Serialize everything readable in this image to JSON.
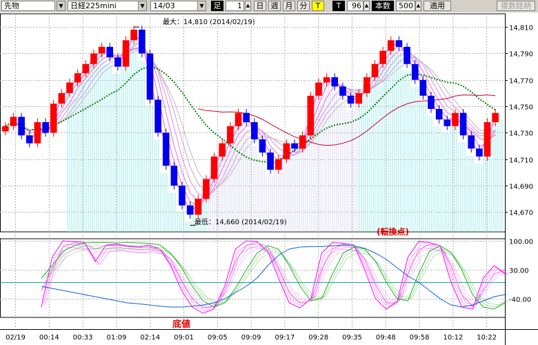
{
  "toolbar": {
    "market": "先物",
    "product": "日経225mini",
    "contract": "14/03",
    "bar_label": "足",
    "bar_count": "1",
    "period_day": "日",
    "period_week": "週",
    "period_month": "月",
    "period_minute": "分",
    "t_yellow": "T",
    "t_dark": "T",
    "tick_value": "96",
    "count_mode": "本数",
    "count_value": "500",
    "apply": "適用",
    "multi_issue": "複数銘柄"
  },
  "chart_data": [
    {
      "type": "candlestick",
      "title": "",
      "ylim": [
        14655,
        14820
      ],
      "y_ticks": [
        "14,810",
        "14,790",
        "14,770",
        "14,750",
        "14,730",
        "14,710",
        "14,690",
        "14,670"
      ],
      "high_annotation": "最大：14,810 (2014/02/19)",
      "low_annotation": "最低：14,660 (2014/02/19)",
      "high_value": 14810,
      "low_value": 14660,
      "series": [
        {
          "name": "",
          "values": [
            14735,
            14742,
            14728,
            14722,
            14738,
            14730,
            14752,
            14760,
            14768,
            14775,
            14782,
            14790,
            14795,
            14787,
            14780,
            14800,
            14808,
            14790,
            14755,
            14730,
            14705,
            14690,
            14675,
            14668,
            14680,
            14695,
            14712,
            14722,
            14735,
            14745,
            14738,
            14725,
            14715,
            14702,
            14710,
            14722,
            14718,
            14728,
            14758,
            14768,
            14772,
            14765,
            14758,
            14752,
            14760,
            14772,
            14782,
            14792,
            14800,
            14795,
            14782,
            14770,
            14758,
            14748,
            14740,
            14735,
            14745,
            14728,
            14718,
            14712,
            14738,
            14745
          ]
        }
      ]
    },
    {
      "type": "line",
      "title": "",
      "ylim": [
        -85,
        115
      ],
      "y_ticks": [
        "100.00",
        "30.00",
        "-40.00"
      ],
      "annotation": "(転換点)",
      "bottom_annotation": "底値",
      "series": [
        {
          "name": "",
          "values": [
            -60,
            60,
            100,
            98,
            96,
            50,
            90,
            92,
            88,
            85,
            90,
            80,
            40,
            -20,
            -60,
            -75,
            -65,
            -10,
            80,
            100,
            98,
            75,
            10,
            -50,
            -62,
            -40,
            70,
            96,
            94,
            90,
            30,
            -40,
            -65,
            -48,
            60,
            98,
            96,
            88,
            0,
            -60,
            -65,
            10,
            40,
            20
          ]
        },
        {
          "name": "",
          "values": [
            -20,
            30,
            85,
            95,
            92,
            80,
            88,
            90,
            86,
            84,
            85,
            80,
            55,
            5,
            -40,
            -62,
            -58,
            -20,
            50,
            88,
            96,
            85,
            35,
            -25,
            -50,
            -45,
            30,
            80,
            92,
            90,
            55,
            -5,
            -50,
            -50,
            20,
            78,
            92,
            88,
            40,
            -30,
            -58,
            -20,
            20,
            30
          ]
        },
        {
          "name": "",
          "values": [
            10,
            40,
            75,
            88,
            95,
            96,
            96,
            95,
            96,
            95,
            94,
            90,
            70,
            35,
            -10,
            -45,
            -60,
            -50,
            -15,
            30,
            70,
            88,
            80,
            40,
            -10,
            -45,
            -40,
            20,
            70,
            85,
            80,
            50,
            0,
            -40,
            -45,
            20,
            75,
            88,
            72,
            30,
            -30,
            -60,
            -65,
            -50
          ]
        },
        {
          "name": "",
          "values": [
            -10,
            -15,
            -20,
            -25,
            -30,
            -35,
            -40,
            -45,
            -50,
            -52,
            -55,
            -58,
            -60,
            -60,
            -58,
            -55,
            -50,
            -40,
            -25,
            -10,
            10,
            40,
            65,
            80,
            85,
            86,
            86,
            88,
            90,
            88,
            82,
            70,
            55,
            35,
            15,
            0,
            -20,
            -40,
            -55,
            -60,
            -55,
            -45,
            -35,
            -30
          ]
        }
      ]
    }
  ],
  "x_ticks": [
    "02/19",
    "00:14",
    "00:33",
    "01:09",
    "02:14",
    "09:01",
    "09:05",
    "09:09",
    "09:17",
    "09:28",
    "09:35",
    "09:48",
    "09:58",
    "10:12",
    "10:22"
  ]
}
